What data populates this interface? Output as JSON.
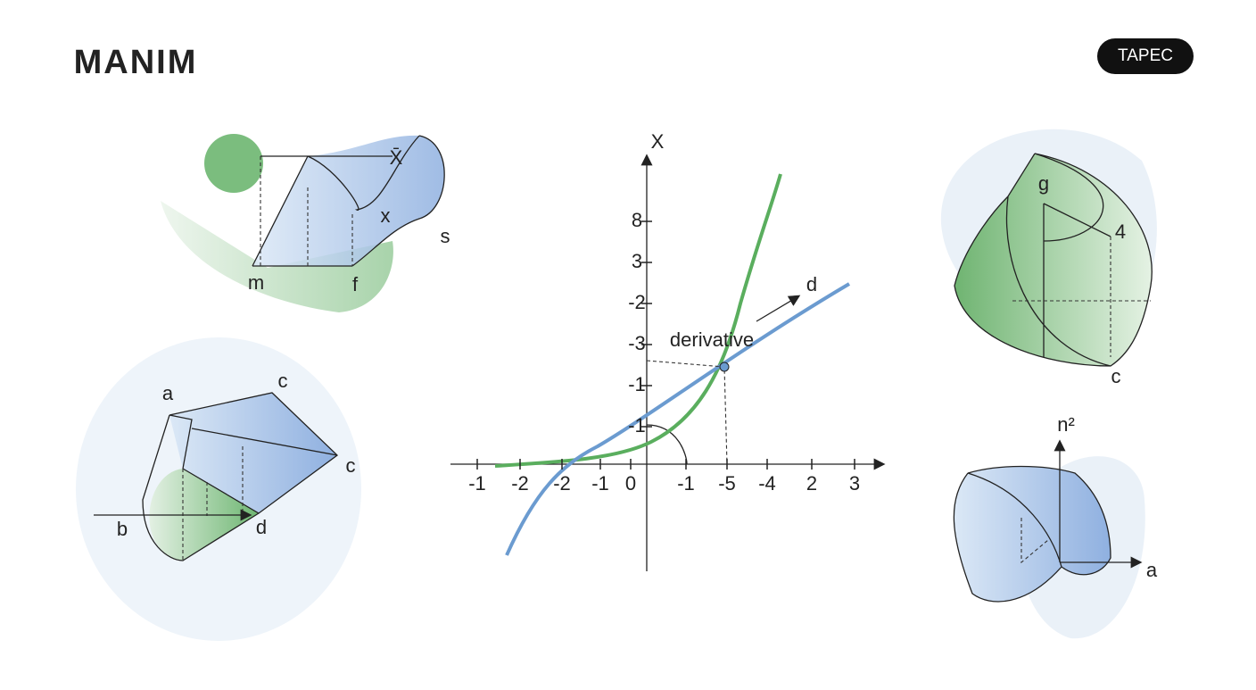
{
  "header": {
    "title": "MANIM",
    "badge": "TAPEC"
  },
  "graph": {
    "axis_label": "X",
    "x_labels": [
      "-1",
      "-2",
      "-2",
      "-1",
      "0",
      "-1",
      "-5",
      "-4",
      "2",
      "3"
    ],
    "y_labels": [
      "8",
      "3",
      "-2",
      "-3",
      "-1",
      "-1"
    ],
    "annotation": "derivative",
    "arrow_label": "d"
  },
  "figures": [
    {
      "labels": [
        "X̄",
        "x",
        "s",
        "m",
        "f"
      ]
    },
    {
      "labels": [
        "a",
        "c",
        "c",
        "b",
        "d"
      ]
    },
    {
      "labels": [
        "g",
        "4",
        "c"
      ]
    },
    {
      "labels": [
        "n²",
        "a"
      ]
    }
  ]
}
